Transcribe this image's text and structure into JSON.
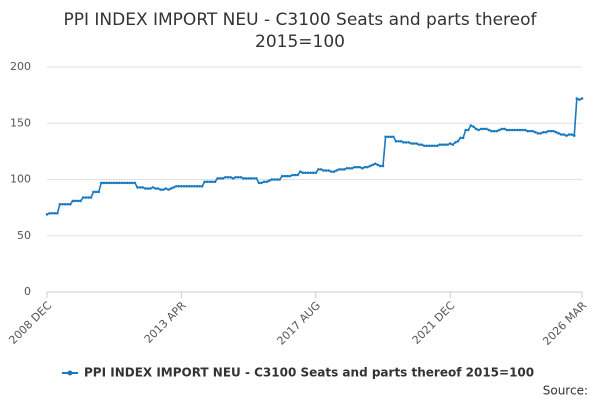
{
  "chart_data": {
    "type": "line",
    "title": [
      "PPI INDEX IMPORT NEU - C3100 Seats and parts thereof",
      "2015=100"
    ],
    "source": "Source:",
    "categories": [
      "2008 DEC",
      null,
      null,
      null,
      null,
      null,
      null,
      null,
      null,
      null,
      null,
      null,
      null,
      null,
      null,
      null,
      null,
      null,
      null,
      null,
      null,
      null,
      null,
      null,
      null,
      null,
      null,
      null,
      null,
      null,
      null,
      null,
      null,
      null,
      null,
      null,
      null,
      null,
      null,
      null,
      null,
      null,
      null,
      null,
      null,
      null,
      null,
      null,
      null,
      null,
      null,
      null,
      "2013 APR",
      null,
      null,
      null,
      null,
      null,
      null,
      null,
      null,
      null,
      null,
      null,
      null,
      null,
      null,
      null,
      null,
      null,
      null,
      null,
      null,
      null,
      null,
      null,
      null,
      null,
      null,
      null,
      null,
      null,
      null,
      null,
      null,
      null,
      null,
      null,
      null,
      null,
      null,
      null,
      null,
      null,
      null,
      null,
      null,
      null,
      null,
      null,
      null,
      null,
      null,
      null,
      "2017 AUG",
      null,
      null,
      null,
      null,
      null,
      null,
      null,
      null,
      null,
      null,
      null,
      null,
      null,
      null,
      null,
      null,
      null,
      null,
      null,
      null,
      null,
      null,
      null,
      null,
      null,
      null,
      null,
      null,
      null,
      null,
      null,
      null,
      null,
      null,
      null,
      null,
      null,
      null,
      null,
      null,
      null,
      null,
      null,
      null,
      null,
      null,
      null,
      null,
      null,
      null,
      null,
      "2021 DEC",
      null,
      null,
      null,
      null,
      null,
      null,
      null,
      null,
      null,
      null,
      null,
      null,
      null,
      null,
      null,
      null,
      null,
      null,
      null,
      null,
      null,
      null,
      null,
      null,
      null,
      null,
      null,
      null,
      null,
      null,
      null,
      null,
      null,
      null,
      null,
      null,
      null,
      null,
      null,
      null,
      null,
      null,
      null,
      null,
      null,
      null,
      null,
      null,
      null,
      null,
      "2026 MAR"
    ],
    "series": [
      {
        "name": "PPI INDEX IMPORT NEU - C3100 Seats and parts thereof 2015=100",
        "color": "#1a7abf",
        "values": [
          69,
          70,
          70,
          70,
          70,
          78,
          78,
          78,
          78,
          78,
          81,
          81,
          81,
          81,
          84,
          84,
          84,
          84,
          89,
          89,
          89,
          97,
          97,
          97,
          97,
          97,
          97,
          97,
          97,
          97,
          97,
          97,
          97,
          97,
          97,
          93,
          93,
          93,
          92,
          92,
          92,
          93,
          92,
          92,
          91,
          91,
          92,
          91,
          92,
          93,
          94,
          94,
          94,
          94,
          94,
          94,
          94,
          94,
          94,
          94,
          94,
          98,
          98,
          98,
          98,
          98,
          101,
          101,
          101,
          102,
          102,
          102,
          101,
          102,
          102,
          102,
          101,
          101,
          101,
          101,
          101,
          101,
          97,
          97,
          98,
          98,
          99,
          100,
          100,
          100,
          100,
          103,
          103,
          103,
          103,
          104,
          104,
          104,
          107,
          106,
          106,
          106,
          106,
          106,
          106,
          109,
          109,
          108,
          108,
          108,
          107,
          107,
          108,
          109,
          109,
          109,
          110,
          110,
          110,
          111,
          111,
          111,
          110,
          111,
          111,
          112,
          113,
          114,
          113,
          112,
          112,
          138,
          138,
          138,
          138,
          134,
          134,
          134,
          133,
          133,
          133,
          132,
          132,
          132,
          131,
          131,
          130,
          130,
          130,
          130,
          130,
          130,
          131,
          131,
          131,
          131,
          132,
          131,
          133,
          134,
          137,
          137,
          144,
          144,
          148,
          147,
          145,
          144,
          145,
          145,
          145,
          144,
          143,
          143,
          143,
          144,
          145,
          145,
          144,
          144,
          144,
          144,
          144,
          144,
          144,
          144,
          143,
          143,
          143,
          142,
          141,
          141,
          142,
          142,
          143,
          143,
          143,
          142,
          141,
          140,
          140,
          139,
          140,
          140,
          139,
          172,
          171,
          172
        ]
      }
    ],
    "ylim": [
      0,
      200
    ],
    "yticks": [
      0,
      50,
      100,
      150,
      200
    ],
    "grid": true,
    "legend": "bottom"
  }
}
